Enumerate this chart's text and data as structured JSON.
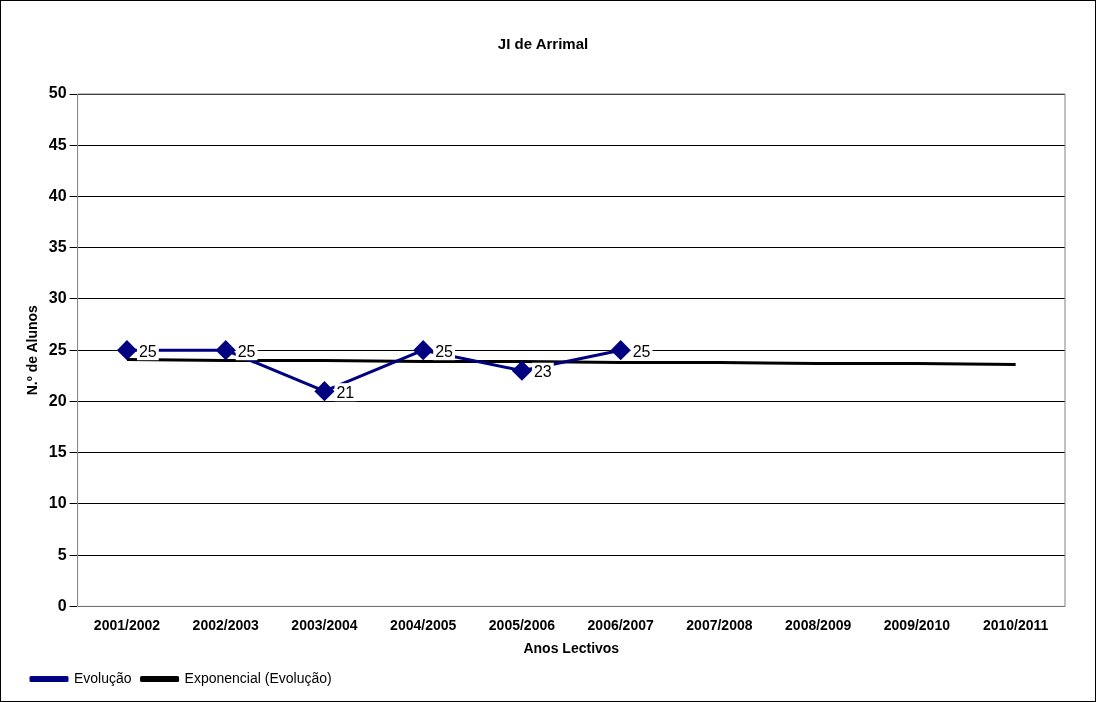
{
  "chart_data": {
    "type": "line",
    "title": "JI de Arrimal",
    "xlabel": "Anos Lectivos",
    "ylabel": "N.º de Alunos",
    "categories": [
      "2001/2002",
      "2002/2003",
      "2003/2004",
      "2004/2005",
      "2005/2006",
      "2006/2007",
      "2007/2008",
      "2008/2009",
      "2009/2010",
      "2010/2011"
    ],
    "series": [
      {
        "name": "Evolução",
        "color": "#000080",
        "marker": "diamond",
        "values": [
          25,
          25,
          21,
          25,
          23,
          25,
          null,
          null,
          null,
          null
        ],
        "value_labels": [
          "25",
          "25",
          "21",
          "25",
          "23",
          "25",
          null,
          null,
          null,
          null
        ]
      },
      {
        "name": "Exponencial (Evolução)",
        "color": "#000000",
        "marker": "none",
        "values": [
          24.1,
          24.0,
          24.0,
          23.9,
          23.9,
          23.8,
          23.8,
          23.7,
          23.7,
          23.6
        ]
      }
    ],
    "ylim": [
      0,
      50
    ],
    "yticks": [
      0,
      5,
      10,
      15,
      20,
      25,
      30,
      35,
      40,
      45,
      50
    ],
    "grid": "y",
    "legend": "bottom left",
    "line_style": "solid"
  }
}
